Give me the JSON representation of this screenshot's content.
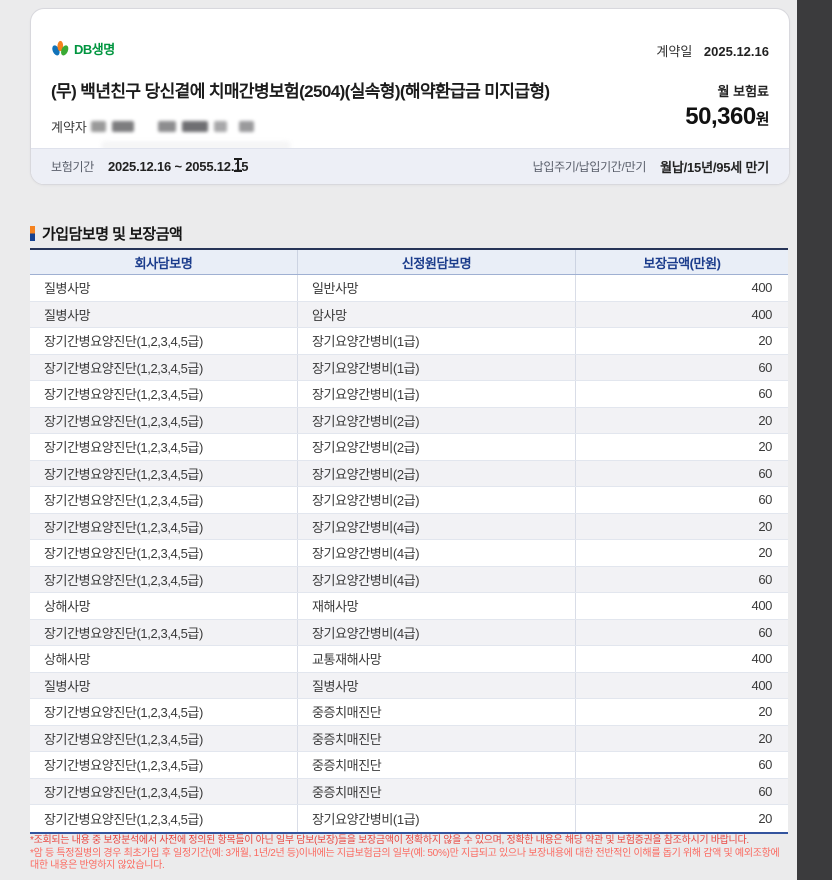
{
  "page": {
    "background": "#ebebec",
    "side_strip_color": "#3b3b3d"
  },
  "brand": {
    "name": "DB생명",
    "wordmark_color": "#00953f",
    "logo_colors": {
      "left_petal": "#1273b9",
      "center_petal": "#f5821f",
      "right_petal": "#3aaa35"
    }
  },
  "policy_card": {
    "contract_date_label": "계약일",
    "contract_date": "2025.12.16",
    "product_title": "(무) 백년친구 당신곁에 치매간병보험(2504)(실속형)(해약환급금 미지급형)",
    "monthly_premium_label": "월 보험료",
    "monthly_premium_amount": "50,360",
    "monthly_premium_unit": "원",
    "policyholder_label": "계약자",
    "period_label": "보험기간",
    "period_value": "2025.12.16 ~ 2055.12.15",
    "payment_terms_label": "납입주기/납입기간/만기",
    "payment_terms_value": "월납/15년/95세 만기"
  },
  "coverage_section": {
    "title": "가입담보명 및 보장금액",
    "bullet_top_color": "#f5821f",
    "bullet_bottom_color": "#16418f"
  },
  "table": {
    "header_bg": "#e9eef7",
    "header_text_color": "#1b3c8c",
    "columns": [
      "회사담보명",
      "신정원담보명",
      "보장금액(만원)"
    ],
    "rows": [
      [
        "질병사망",
        "일반사망",
        "400"
      ],
      [
        "질병사망",
        "암사망",
        "400"
      ],
      [
        "장기간병요양진단(1,2,3,4,5급)",
        "장기요양간병비(1급)",
        "20"
      ],
      [
        "장기간병요양진단(1,2,3,4,5급)",
        "장기요양간병비(1급)",
        "60"
      ],
      [
        "장기간병요양진단(1,2,3,4,5급)",
        "장기요양간병비(1급)",
        "60"
      ],
      [
        "장기간병요양진단(1,2,3,4,5급)",
        "장기요양간병비(2급)",
        "20"
      ],
      [
        "장기간병요양진단(1,2,3,4,5급)",
        "장기요양간병비(2급)",
        "20"
      ],
      [
        "장기간병요양진단(1,2,3,4,5급)",
        "장기요양간병비(2급)",
        "60"
      ],
      [
        "장기간병요양진단(1,2,3,4,5급)",
        "장기요양간병비(2급)",
        "60"
      ],
      [
        "장기간병요양진단(1,2,3,4,5급)",
        "장기요양간병비(4급)",
        "20"
      ],
      [
        "장기간병요양진단(1,2,3,4,5급)",
        "장기요양간병비(4급)",
        "20"
      ],
      [
        "장기간병요양진단(1,2,3,4,5급)",
        "장기요양간병비(4급)",
        "60"
      ],
      [
        "상해사망",
        "재해사망",
        "400"
      ],
      [
        "장기간병요양진단(1,2,3,4,5급)",
        "장기요양간병비(4급)",
        "60"
      ],
      [
        "상해사망",
        "교통재해사망",
        "400"
      ],
      [
        "질병사망",
        "질병사망",
        "400"
      ],
      [
        "장기간병요양진단(1,2,3,4,5급)",
        "중증치매진단",
        "20"
      ],
      [
        "장기간병요양진단(1,2,3,4,5급)",
        "중증치매진단",
        "20"
      ],
      [
        "장기간병요양진단(1,2,3,4,5급)",
        "중증치매진단",
        "60"
      ],
      [
        "장기간병요양진단(1,2,3,4,5급)",
        "중증치매진단",
        "60"
      ],
      [
        "장기간병요양진단(1,2,3,4,5급)",
        "장기요양간병비(1급)",
        "20"
      ]
    ]
  },
  "footnotes": [
    "*조회되는 내용 중 보장분석에서 사전에 정의된 항목들이 아닌 일부 담보(보장)들을 보장금액이 정확하지 않을 수 있으며, 정확한 내용은 해당 약관 및 보험증권을 참조하시기 바랍니다.",
    "*암 등 특정질병의 경우 최초가입 후 일정기간(예: 3개월, 1년/2년 등)이내에는 지급보험금의 일부(예: 50%)만 지급되고 있으나 보장내용에 대한 전반적인 이해를 돕기 위해 감액 및 예외조항에 대한 내용은 반영하지 않았습니다."
  ]
}
